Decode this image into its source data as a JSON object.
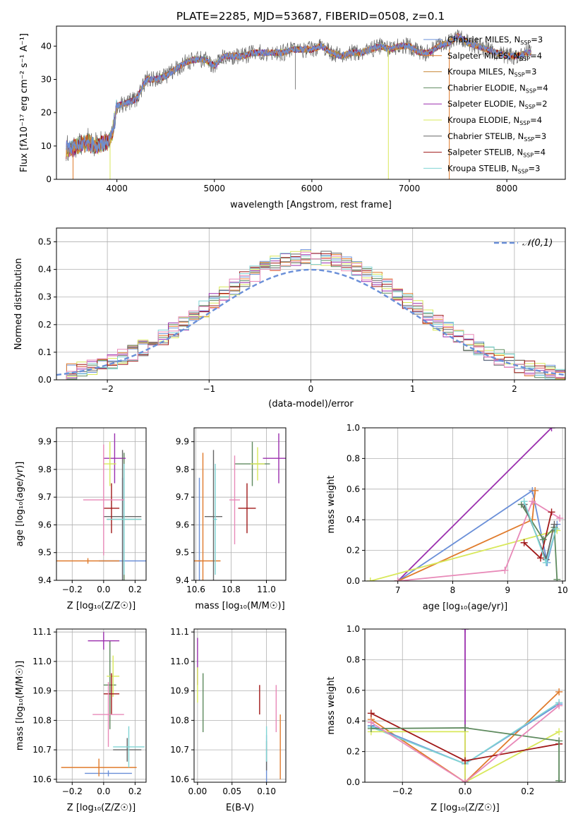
{
  "title": "PLATE=2285, MJD=53687, FIBERID=0508, z=0.1",
  "colors": [
    "#6a8fd8",
    "#e07b2c",
    "#ca8a3a",
    "#5e8a5e",
    "#9b2fae",
    "#d8e85a",
    "#666666",
    "#a01818",
    "#80d4d4",
    "#e889b8"
  ],
  "chart_data": [
    {
      "id": "spectrum",
      "type": "line",
      "xlabel": "wavelength [Angstrom, rest frame]",
      "ylabel": "Flux [f_λ10^-17 erg cm^-2 s^-1 A^-1]",
      "xlim": [
        3380,
        8600
      ],
      "ylim": [
        0,
        46
      ],
      "xticks": [
        4000,
        5000,
        6000,
        7000,
        8000
      ],
      "yticks": [
        0,
        10,
        20,
        30,
        40
      ],
      "legend_position": "upper right",
      "series": [
        {
          "name": "Chabrier MILES, N_SSP=3",
          "color": "#6a8fd8"
        },
        {
          "name": "Salpeter MILES, N_SSP=4",
          "color": "#e07b2c"
        },
        {
          "name": "Kroupa MILES, N_SSP=3",
          "color": "#ca8a3a"
        },
        {
          "name": "Chabrier ELODIE, N_SSP=4",
          "color": "#5e8a5e"
        },
        {
          "name": "Salpeter ELODIE, N_SSP=2",
          "color": "#9b2fae"
        },
        {
          "name": "Kroupa ELODIE, N_SSP=4",
          "color": "#d8e85a"
        },
        {
          "name": "Chabrier STELIB, N_SSP=3",
          "color": "#666666"
        },
        {
          "name": "Salpeter STELIB, N_SSP=4",
          "color": "#a01818"
        },
        {
          "name": "Kroupa STELIB, N_SSP=3",
          "color": "#80d4d4"
        }
      ],
      "flux_curve": {
        "x": [
          3500,
          3600,
          3700,
          3800,
          3900,
          3950,
          4000,
          4100,
          4200,
          4300,
          4400,
          4500,
          4600,
          4700,
          4800,
          4900,
          5000,
          5100,
          5200,
          5300,
          5400,
          5500,
          5600,
          5700,
          5800,
          5900,
          6000,
          6100,
          6200,
          6300,
          6400,
          6500,
          6600,
          6700,
          6800,
          6900,
          7000,
          7100,
          7200,
          7300,
          7400,
          7500,
          7600,
          7700,
          7800,
          7900,
          8000,
          8100,
          8200
        ],
        "y": [
          9,
          10,
          11,
          10,
          11,
          13,
          22,
          23,
          24,
          30,
          30,
          31,
          33,
          35,
          36,
          36,
          34,
          37,
          37,
          37,
          38,
          38,
          38,
          38,
          39,
          39,
          39,
          40,
          38,
          37,
          38,
          38,
          39,
          40,
          39,
          40,
          40,
          38,
          38,
          40,
          41,
          43,
          41,
          40,
          39,
          38,
          37,
          37,
          38
        ]
      }
    },
    {
      "id": "residuals",
      "type": "line",
      "xlabel": "(data-model)/error",
      "ylabel": "Normed distribution",
      "xlim": [
        -2.5,
        2.5
      ],
      "ylim": [
        0,
        0.55
      ],
      "xticks": [
        -2,
        -1,
        0,
        1,
        2
      ],
      "yticks": [
        0.0,
        0.1,
        0.2,
        0.3,
        0.4,
        0.5
      ],
      "grid": true,
      "legend_position": "upper right",
      "reference_curve": {
        "name": "𝒩(0,1)",
        "mean": 0,
        "sigma": 1,
        "color": "#6a8fd8",
        "dashed": true
      }
    },
    {
      "id": "age-vs-Z",
      "type": "scatter",
      "xlabel": "Z [log10(Z/Z☉)]",
      "ylabel": "age  [log10(age/yr)]",
      "xlim": [
        -0.3,
        0.27
      ],
      "ylim": [
        9.4,
        9.95
      ],
      "xticks": [
        -0.2,
        0.0,
        0.2
      ],
      "yticks": [
        9.4,
        9.5,
        9.6,
        9.7,
        9.8,
        9.9
      ],
      "grid": true,
      "points": [
        {
          "x": 0.12,
          "y": 9.47,
          "xerr": 0.15,
          "yerr": 0.3,
          "color": "#6a8fd8"
        },
        {
          "x": -0.1,
          "y": 9.47,
          "xerr": 0.2,
          "yerr": 0.01,
          "color": "#e07b2c"
        },
        {
          "x": 0.13,
          "y": 9.62,
          "xerr": 0.11,
          "yerr": 0.24,
          "color": "#5e8a5e"
        },
        {
          "x": 0.07,
          "y": 9.84,
          "xerr": 0.07,
          "yerr": 0.09,
          "color": "#9b2fae"
        },
        {
          "x": 0.04,
          "y": 9.82,
          "xerr": 0.04,
          "yerr": 0.08,
          "color": "#d8e85a"
        },
        {
          "x": 0.12,
          "y": 9.63,
          "xerr": 0.12,
          "yerr": 0.24,
          "color": "#666666"
        },
        {
          "x": 0.05,
          "y": 9.66,
          "xerr": 0.05,
          "yerr": 0.09,
          "color": "#a01818"
        },
        {
          "x": 0.13,
          "y": 9.62,
          "xerr": 0.11,
          "yerr": 0.2,
          "color": "#80d4d4"
        },
        {
          "x": 0.0,
          "y": 9.69,
          "xerr": 0.13,
          "yerr": 0.2,
          "color": "#e889b8"
        }
      ]
    },
    {
      "id": "age-vs-mass",
      "type": "scatter",
      "xlabel": "mass [log10(M/M☉)]",
      "ylabel": "",
      "xlim": [
        10.59,
        11.11
      ],
      "ylim": [
        9.4,
        9.95
      ],
      "xticks": [
        10.6,
        10.8,
        11.0
      ],
      "yticks": [
        9.4,
        9.5,
        9.6,
        9.7,
        9.8,
        9.9
      ],
      "grid": true,
      "points": [
        {
          "x": 10.62,
          "y": 9.47,
          "xerr": 0.01,
          "yerr": 0.3,
          "color": "#6a8fd8"
        },
        {
          "x": 10.64,
          "y": 9.47,
          "xerr": 0.1,
          "yerr": 0.39,
          "color": "#e07b2c"
        },
        {
          "x": 10.92,
          "y": 9.82,
          "xerr": 0.1,
          "yerr": 0.08,
          "color": "#5e8a5e"
        },
        {
          "x": 11.07,
          "y": 9.84,
          "xerr": 0.09,
          "yerr": 0.09,
          "color": "#9b2fae"
        },
        {
          "x": 10.95,
          "y": 9.82,
          "xerr": 0.04,
          "yerr": 0.06,
          "color": "#d8e85a"
        },
        {
          "x": 10.7,
          "y": 9.63,
          "xerr": 0.05,
          "yerr": 0.24,
          "color": "#666666"
        },
        {
          "x": 10.89,
          "y": 9.66,
          "xerr": 0.05,
          "yerr": 0.09,
          "color": "#a01818"
        },
        {
          "x": 10.71,
          "y": 9.62,
          "xerr": 0.01,
          "yerr": 0.2,
          "color": "#80d4d4"
        },
        {
          "x": 10.82,
          "y": 9.69,
          "xerr": 0.03,
          "yerr": 0.16,
          "color": "#e889b8"
        }
      ]
    },
    {
      "id": "weight-vs-age",
      "type": "line",
      "xlabel": "age  [log10(age/yr)]",
      "ylabel": "mass weight",
      "xlim": [
        6.4,
        10.05
      ],
      "ylim": [
        0,
        1.0
      ],
      "xticks": [
        7,
        8,
        9,
        10
      ],
      "yticks": [
        0.0,
        0.2,
        0.4,
        0.6,
        0.8,
        1.0
      ],
      "grid": true,
      "series": [
        {
          "color": "#9b2fae",
          "x": [
            7.0,
            9.8
          ],
          "y": [
            0.0,
            1.0
          ]
        },
        {
          "color": "#6a8fd8",
          "x": [
            7.0,
            9.45,
            9.72,
            9.9
          ],
          "y": [
            0.0,
            0.59,
            0.12,
            0.37
          ]
        },
        {
          "color": "#e07b2c",
          "x": [
            7.0,
            9.45,
            9.5
          ],
          "y": [
            0.0,
            0.4,
            0.59
          ]
        },
        {
          "color": "#d8e85a",
          "x": [
            6.5,
            9.9
          ],
          "y": [
            0.0,
            0.33
          ]
        },
        {
          "color": "#e889b8",
          "x": [
            7.0,
            8.95,
            9.45,
            9.95
          ],
          "y": [
            0.0,
            0.07,
            0.52,
            0.41
          ]
        },
        {
          "color": "#a01818",
          "x": [
            9.3,
            9.6,
            9.8
          ],
          "y": [
            0.25,
            0.15,
            0.45
          ]
        },
        {
          "color": "#5e8a5e",
          "x": [
            9.25,
            9.65,
            9.85,
            9.9
          ],
          "y": [
            0.5,
            0.27,
            0.35,
            0.01
          ]
        },
        {
          "color": "#666666",
          "x": [
            9.3,
            9.7,
            9.85
          ],
          "y": [
            0.5,
            0.14,
            0.37
          ]
        },
        {
          "color": "#80d4d4",
          "x": [
            9.3,
            9.7,
            9.88
          ],
          "y": [
            0.52,
            0.12,
            0.34
          ]
        }
      ]
    },
    {
      "id": "mass-vs-Z",
      "type": "scatter",
      "xlabel": "Z [log10(Z/Z☉)]",
      "ylabel": "mass [log10(M/M☉)]",
      "xlim": [
        -0.3,
        0.27
      ],
      "ylim": [
        10.59,
        11.11
      ],
      "xticks": [
        -0.2,
        0.0,
        0.2
      ],
      "yticks": [
        10.6,
        10.7,
        10.8,
        10.9,
        11.0,
        11.1
      ],
      "grid": true,
      "points": [
        {
          "x": 0.03,
          "y": 10.62,
          "xerr": 0.15,
          "yerr": 0.01,
          "color": "#6a8fd8"
        },
        {
          "x": -0.03,
          "y": 10.64,
          "xerr": 0.24,
          "yerr": 0.03,
          "color": "#e07b2c"
        },
        {
          "x": 0.04,
          "y": 10.92,
          "xerr": 0.04,
          "yerr": 0.15,
          "color": "#5e8a5e"
        },
        {
          "x": 0.0,
          "y": 11.07,
          "xerr": 0.1,
          "yerr": 0.03,
          "color": "#9b2fae"
        },
        {
          "x": 0.06,
          "y": 10.95,
          "xerr": 0.04,
          "yerr": 0.07,
          "color": "#d8e85a"
        },
        {
          "x": 0.15,
          "y": 10.7,
          "xerr": 0.09,
          "yerr": 0.04,
          "color": "#666666"
        },
        {
          "x": 0.05,
          "y": 10.89,
          "xerr": 0.05,
          "yerr": 0.07,
          "color": "#a01818"
        },
        {
          "x": 0.16,
          "y": 10.71,
          "xerr": 0.1,
          "yerr": 0.07,
          "color": "#80d4d4"
        },
        {
          "x": 0.03,
          "y": 10.82,
          "xerr": 0.1,
          "yerr": 0.11,
          "color": "#e889b8"
        }
      ]
    },
    {
      "id": "mass-vs-ebv",
      "type": "scatter",
      "xlabel": "E(B-V)",
      "ylabel": "",
      "xlim": [
        -0.005,
        0.128
      ],
      "ylim": [
        10.59,
        11.11
      ],
      "xticks": [
        0.0,
        0.05,
        0.1
      ],
      "xtick_labels": [
        "0.00",
        "0.05",
        "0.10"
      ],
      "yticks": [
        10.6,
        10.7,
        10.8,
        10.9,
        11.0,
        11.1
      ],
      "grid": true,
      "points": [
        {
          "x": 0.1,
          "y": 10.67,
          "xerr": 0.0,
          "yerr": 0.08,
          "color": "#6a8fd8"
        },
        {
          "x": 0.12,
          "y": 10.71,
          "xerr": 0.0,
          "yerr": 0.11,
          "color": "#e07b2c"
        },
        {
          "x": 0.008,
          "y": 10.86,
          "xerr": 0.0,
          "yerr": 0.1,
          "color": "#5e8a5e"
        },
        {
          "x": 0.0,
          "y": 11.0,
          "xerr": 0.0,
          "yerr": 0.08,
          "color": "#9b2fae"
        },
        {
          "x": 0.0,
          "y": 10.92,
          "xerr": 0.0,
          "yerr": 0.06,
          "color": "#d8e85a"
        },
        {
          "x": 0.1,
          "y": 10.68,
          "xerr": 0.0,
          "yerr": 0.05,
          "color": "#666666"
        },
        {
          "x": 0.09,
          "y": 10.87,
          "xerr": 0.0,
          "yerr": 0.05,
          "color": "#a01818"
        },
        {
          "x": 0.1,
          "y": 10.72,
          "xerr": 0.0,
          "yerr": 0.06,
          "color": "#80d4d4"
        },
        {
          "x": 0.114,
          "y": 10.84,
          "xerr": 0.0,
          "yerr": 0.08,
          "color": "#e889b8"
        }
      ]
    },
    {
      "id": "weight-vs-Z",
      "type": "line",
      "xlabel": "Z [log10(Z/Z☉)]",
      "ylabel": "mass weight",
      "xlim": [
        -0.32,
        0.32
      ],
      "ylim": [
        0,
        1.0
      ],
      "xticks": [
        -0.2,
        0.0,
        0.2
      ],
      "yticks": [
        0.0,
        0.2,
        0.4,
        0.6,
        0.8,
        1.0
      ],
      "grid": true,
      "series": [
        {
          "color": "#9b2fae",
          "x": [
            0.0,
            0.0
          ],
          "y": [
            1.0,
            0.0
          ]
        },
        {
          "color": "#e07b2c",
          "x": [
            -0.3,
            0.0,
            0.3
          ],
          "y": [
            0.41,
            0.0,
            0.59
          ]
        },
        {
          "color": "#6a8fd8",
          "x": [
            -0.3,
            0.0,
            0.3
          ],
          "y": [
            0.37,
            0.12,
            0.51
          ]
        },
        {
          "color": "#80d4d4",
          "x": [
            -0.3,
            0.0,
            0.3
          ],
          "y": [
            0.36,
            0.12,
            0.52
          ]
        },
        {
          "color": "#d8e85a",
          "x": [
            -0.3,
            0.0,
            0.0,
            0.3
          ],
          "y": [
            0.33,
            0.33,
            0.0,
            0.33
          ]
        },
        {
          "color": "#a01818",
          "x": [
            -0.3,
            0.0,
            0.3
          ],
          "y": [
            0.45,
            0.14,
            0.25
          ]
        },
        {
          "color": "#5e8a5e",
          "x": [
            -0.3,
            0.0,
            0.3,
            0.3
          ],
          "y": [
            0.35,
            0.355,
            0.27,
            0.01
          ]
        },
        {
          "color": "#e889b8",
          "x": [
            -0.3,
            0.0,
            0.3
          ],
          "y": [
            0.39,
            0.0,
            0.5
          ]
        }
      ]
    }
  ]
}
